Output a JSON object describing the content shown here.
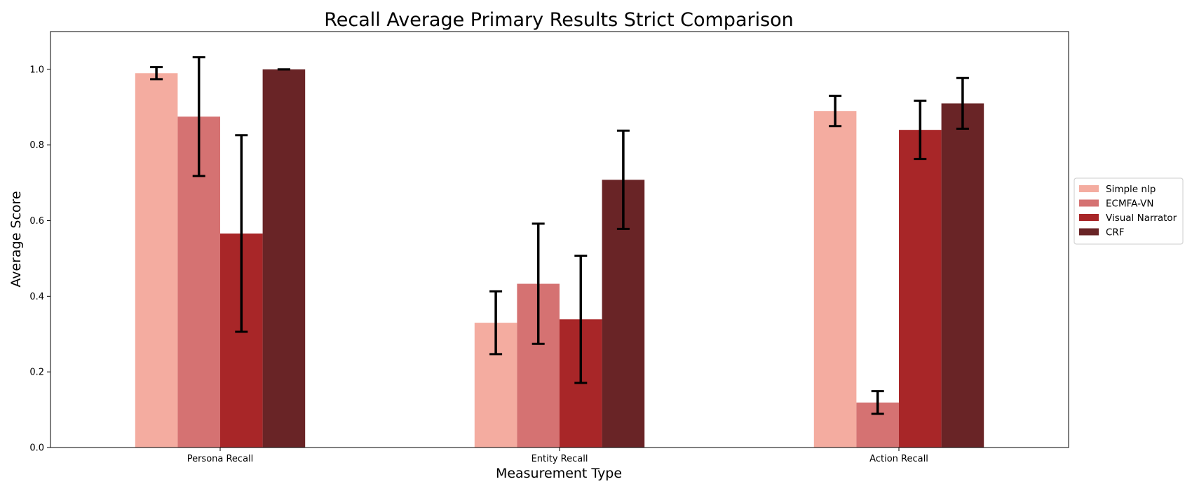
{
  "chart_data": {
    "type": "bar",
    "title": "Recall Average Primary Results Strict Comparison",
    "xlabel": "Measurement Type",
    "ylabel": "Average Score",
    "categories": [
      "Persona Recall",
      "Entity Recall",
      "Action Recall"
    ],
    "ylim": [
      0,
      1.1
    ],
    "yticks": [
      "0.0",
      "0.2",
      "0.4",
      "0.6",
      "0.8",
      "1.0"
    ],
    "legend_position": "right",
    "grid": false,
    "series": [
      {
        "name": "Simple nlp",
        "color": "#f4aca0",
        "values": [
          0.99,
          0.33,
          0.89
        ],
        "errors": [
          0.016,
          0.083,
          0.04
        ]
      },
      {
        "name": "ECMFA-VN",
        "color": "#d57272",
        "values": [
          0.875,
          0.433,
          0.119
        ],
        "errors": [
          0.157,
          0.159,
          0.03
        ]
      },
      {
        "name": "Visual Narrator",
        "color": "#a82628",
        "values": [
          0.566,
          0.339,
          0.84
        ],
        "errors": [
          0.26,
          0.168,
          0.077
        ]
      },
      {
        "name": "CRF",
        "color": "#692426",
        "values": [
          1.0,
          0.708,
          0.91
        ],
        "errors": [
          0.0,
          0.13,
          0.067
        ]
      }
    ]
  }
}
